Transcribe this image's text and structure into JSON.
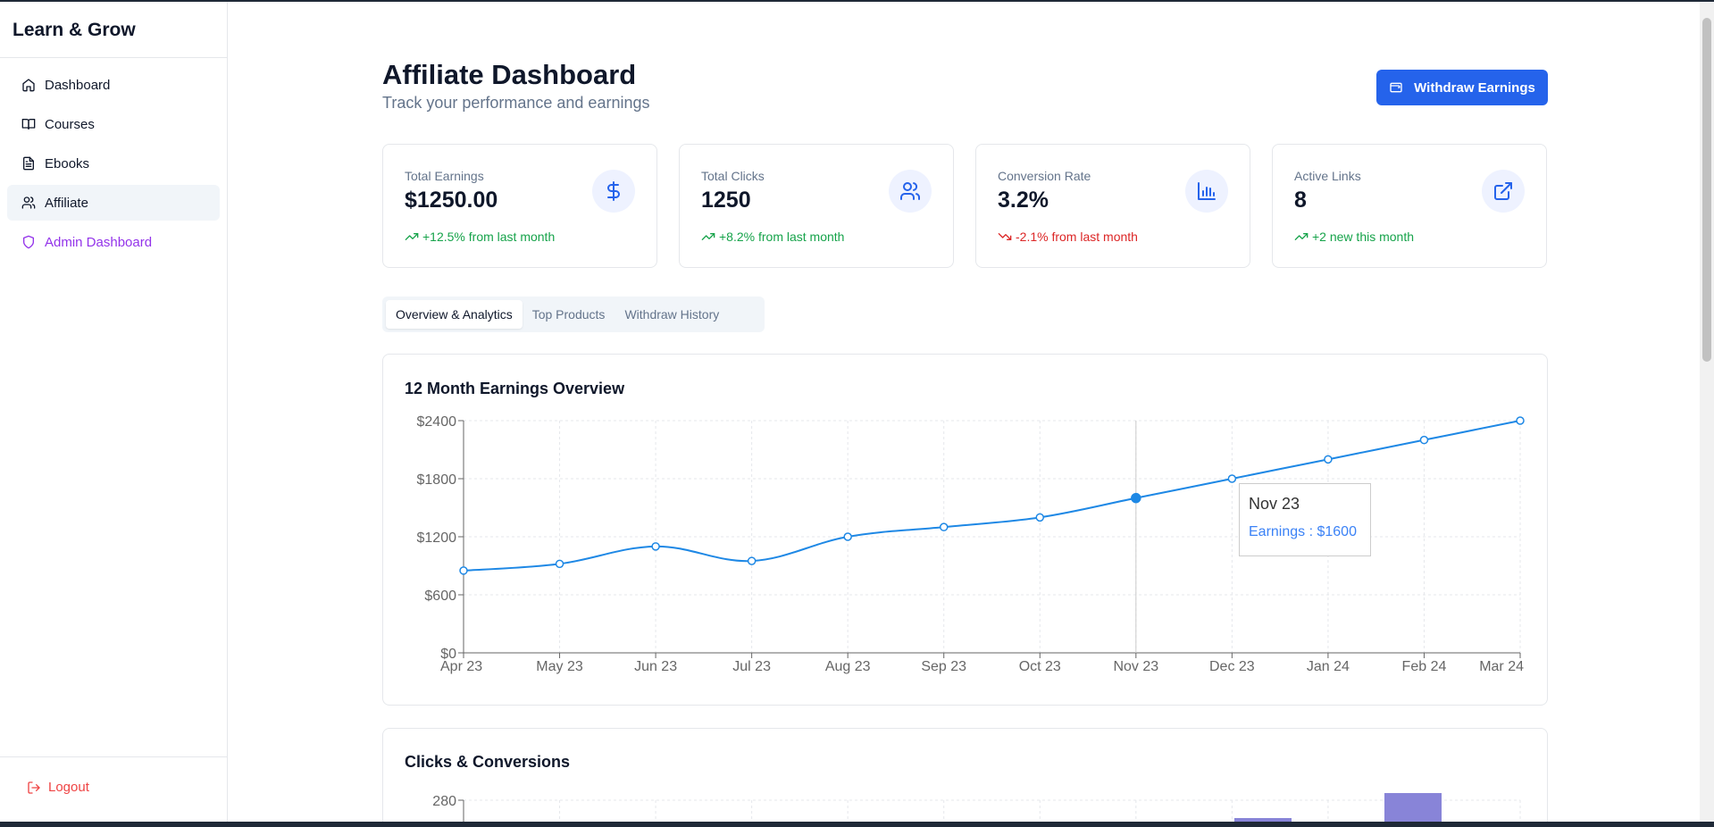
{
  "app": {
    "brand": "Learn & Grow"
  },
  "sidebar": {
    "items": [
      {
        "label": "Dashboard",
        "icon": "home-icon"
      },
      {
        "label": "Courses",
        "icon": "book-icon"
      },
      {
        "label": "Ebooks",
        "icon": "file-text-icon"
      },
      {
        "label": "Affiliate",
        "icon": "users-icon",
        "active": true
      },
      {
        "label": "Admin Dashboard",
        "icon": "shield-icon"
      }
    ],
    "logout": "Logout"
  },
  "header": {
    "title": "Affiliate Dashboard",
    "subtitle": "Track your performance and earnings",
    "withdraw_label": "Withdraw Earnings"
  },
  "stats": [
    {
      "label": "Total Earnings",
      "value": "$1250.00",
      "trend": "+12.5% from last month",
      "direction": "up",
      "icon": "dollar-icon"
    },
    {
      "label": "Total Clicks",
      "value": "1250",
      "trend": "+8.2% from last month",
      "direction": "up",
      "icon": "users-icon"
    },
    {
      "label": "Conversion Rate",
      "value": "3.2%",
      "trend": "-2.1% from last month",
      "direction": "down",
      "icon": "bar-chart-icon"
    },
    {
      "label": "Active Links",
      "value": "8",
      "trend": "+2 new this month",
      "direction": "up",
      "icon": "external-link-icon"
    }
  ],
  "tabs": [
    {
      "label": "Overview & Analytics",
      "active": true
    },
    {
      "label": "Top Products"
    },
    {
      "label": "Withdraw History"
    }
  ],
  "earnings_chart": {
    "title": "12 Month Earnings Overview",
    "tooltip": {
      "label": "Nov 23",
      "value": "Earnings : $1600"
    }
  },
  "clicks_chart": {
    "title": "Clicks & Conversions",
    "visible_tick": "280"
  },
  "colors": {
    "accent": "#2563eb",
    "line": "#1e88e5",
    "bar": "#8884d8",
    "admin": "#9333ea",
    "logout": "#ef4444"
  },
  "chart_data": [
    {
      "type": "line",
      "title": "12 Month Earnings Overview",
      "categories": [
        "Apr 23",
        "May 23",
        "Jun 23",
        "Jul 23",
        "Aug 23",
        "Sep 23",
        "Oct 23",
        "Nov 23",
        "Dec 23",
        "Jan 24",
        "Feb 24",
        "Mar 24"
      ],
      "series": [
        {
          "name": "Earnings",
          "values": [
            850,
            920,
            1100,
            950,
            1200,
            1300,
            1400,
            1600,
            1800,
            2000,
            2200,
            2400
          ]
        }
      ],
      "yticks": [
        "$0",
        "$600",
        "$1200",
        "$1800",
        "$2400"
      ],
      "ylim": [
        0,
        2400
      ],
      "grid": true,
      "highlighted": "Nov 23"
    },
    {
      "type": "bar",
      "title": "Clicks & Conversions",
      "yticks": [
        "280"
      ]
    }
  ]
}
